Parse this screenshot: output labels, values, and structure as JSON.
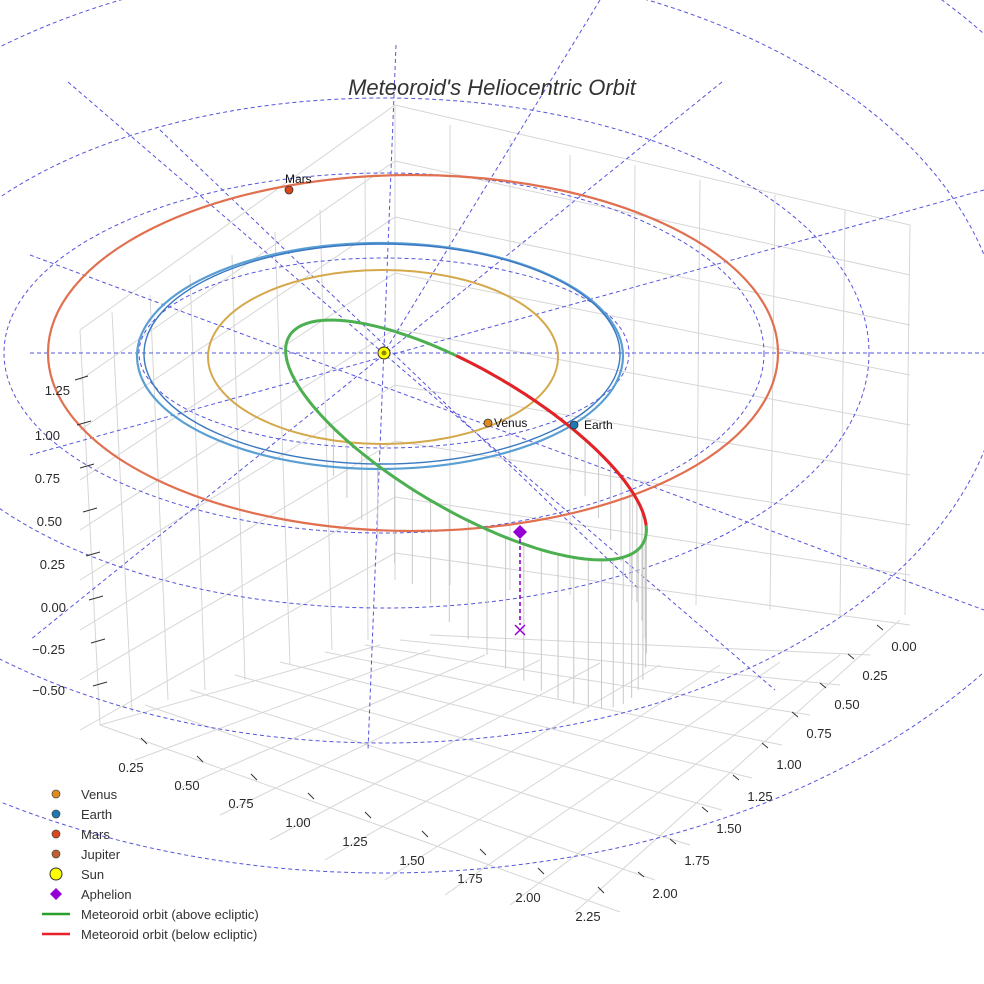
{
  "chart_data": {
    "type": "scatter3d",
    "title": "Meteoroid's Heliocentric Orbit",
    "axes": {
      "x": {
        "ticks": [
          "0.00",
          "0.25",
          "0.50",
          "0.75",
          "1.00",
          "1.25",
          "1.50",
          "1.75",
          "2.00"
        ]
      },
      "y": {
        "ticks": [
          "0.25",
          "0.50",
          "0.75",
          "1.00",
          "1.25",
          "1.50",
          "1.75",
          "2.00",
          "2.25"
        ]
      },
      "z": {
        "ticks": [
          "1.25",
          "1.00",
          "0.75",
          "0.50",
          "0.25",
          "0.00",
          "−0.25",
          "−0.50"
        ]
      }
    },
    "planets": [
      {
        "name": "Venus",
        "color": "#d4a84b",
        "marker": "#e08a1e",
        "label": "Venus"
      },
      {
        "name": "Earth",
        "color": "#3a78c2",
        "marker": "#1f77b4",
        "label": "Earth"
      },
      {
        "name": "Mars",
        "color": "#e07050",
        "marker": "#d9481c",
        "label": "Mars"
      },
      {
        "name": "Jupiter",
        "color": "#b8653a",
        "marker": "#c06030",
        "label": ""
      }
    ],
    "sun": {
      "name": "Sun",
      "color": "#ffff00"
    },
    "aphelion": {
      "name": "Aphelion",
      "color": "#9400d3"
    },
    "meteoroid": {
      "above": {
        "name": "Meteoroid orbit (above ecliptic)",
        "color": "#4caf50"
      },
      "below": {
        "name": "Meteoroid orbit (below ecliptic)",
        "color": "#e8202a"
      }
    },
    "legend": [
      {
        "label": "Venus",
        "symbol": "dot",
        "color": "#e08a1e"
      },
      {
        "label": "Earth",
        "symbol": "dot",
        "color": "#1f77b4"
      },
      {
        "label": "Mars",
        "symbol": "dot",
        "color": "#d9481c"
      },
      {
        "label": "Jupiter",
        "symbol": "dot",
        "color": "#c06030"
      },
      {
        "label": "Sun",
        "symbol": "bigdot",
        "color": "#ffff00"
      },
      {
        "label": "Aphelion",
        "symbol": "diamond",
        "color": "#9400d3"
      },
      {
        "label": "Meteoroid orbit (above ecliptic)",
        "symbol": "line",
        "color": "#2ca02c"
      },
      {
        "label": "Meteoroid orbit (below ecliptic)",
        "symbol": "line",
        "color": "#e8202a"
      }
    ]
  }
}
